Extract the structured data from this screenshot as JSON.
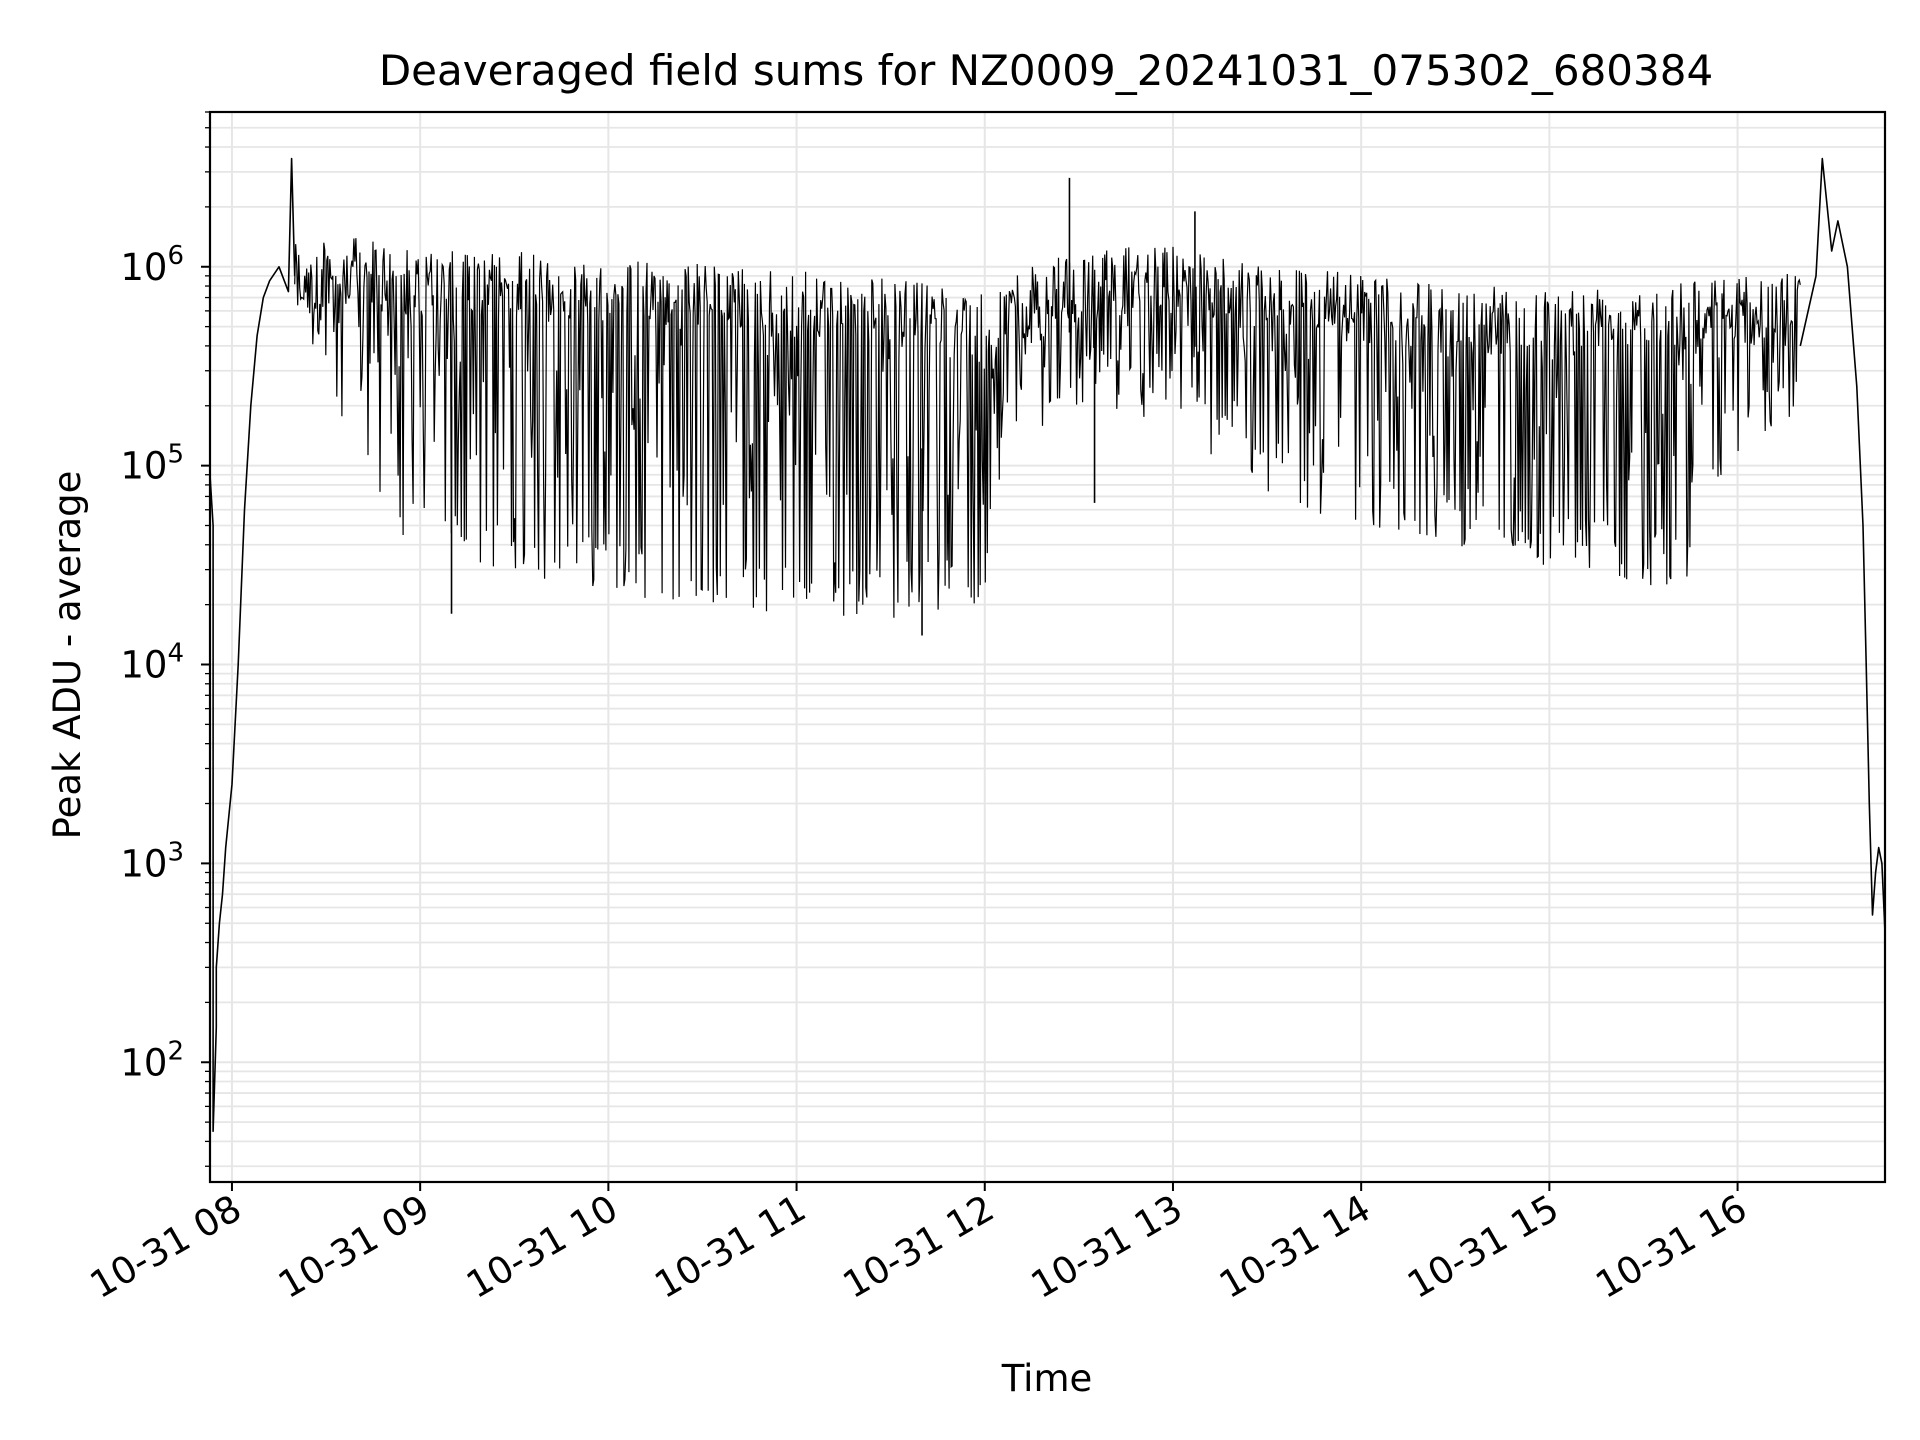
{
  "chart_data": {
    "type": "line",
    "title": "Deaveraged field sums for NZ0009_20241031_075302_680384",
    "xlabel": "Time",
    "ylabel": "Peak ADU - average",
    "yscale": "log",
    "xlim": [
      "2024-10-31 07:53",
      "2024-10-31 16:47"
    ],
    "ylim": [
      25,
      6000000
    ],
    "x_ticks": [
      "10-31 08",
      "10-31 09",
      "10-31 10",
      "10-31 11",
      "10-31 12",
      "10-31 13",
      "10-31 14",
      "10-31 15",
      "10-31 16"
    ],
    "x_tick_rotation_deg": 30,
    "y_ticks": [
      {
        "value": 100,
        "base": "10",
        "exp": "2"
      },
      {
        "value": 1000,
        "base": "10",
        "exp": "3"
      },
      {
        "value": 10000,
        "base": "10",
        "exp": "4"
      },
      {
        "value": 100000,
        "base": "10",
        "exp": "5"
      },
      {
        "value": 1000000,
        "base": "10",
        "exp": "6"
      }
    ],
    "grid": true,
    "line_color": "#000000",
    "grid_color": "#e6e6e6",
    "series": [
      {
        "x": [
          "2024-10-31 07:53",
          "2024-10-31 07:54",
          "2024-10-31 07:54",
          "2024-10-31 07:55",
          "2024-10-31 07:55",
          "2024-10-31 07:56",
          "2024-10-31 07:57",
          "2024-10-31 07:58",
          "2024-10-31 08:00",
          "2024-10-31 08:02",
          "2024-10-31 08:04",
          "2024-10-31 08:06",
          "2024-10-31 08:08",
          "2024-10-31 08:10",
          "2024-10-31 08:12",
          "2024-10-31 08:15",
          "2024-10-31 08:18",
          "2024-10-31 08:19",
          "2024-10-31 08:20"
        ],
        "y": [
          90000,
          50000,
          45,
          150,
          300,
          500,
          700,
          1200,
          2500,
          10000,
          60000,
          200000,
          450000,
          700000,
          850000,
          1000000,
          750000,
          3500000,
          900000
        ]
      },
      {
        "x": [
          "2024-10-31 16:20",
          "2024-10-31 16:25",
          "2024-10-31 16:27",
          "2024-10-31 16:30",
          "2024-10-31 16:32",
          "2024-10-31 16:35",
          "2024-10-31 16:37",
          "2024-10-31 16:38",
          "2024-10-31 16:40",
          "2024-10-31 16:41",
          "2024-10-31 16:42",
          "2024-10-31 16:43",
          "2024-10-31 16:44",
          "2024-10-31 16:45",
          "2024-10-31 16:46",
          "2024-10-31 16:47"
        ],
        "y": [
          400000,
          900000,
          3500000,
          1200000,
          1700000,
          1000000,
          400000,
          250000,
          50000,
          10000,
          2000,
          550,
          900,
          1200,
          1000,
          450
        ]
      }
    ],
    "noisy_band_x": [
      "2024-10-31 08:20",
      "2024-10-31 08:40",
      "2024-10-31 09:00",
      "2024-10-31 09:30",
      "2024-10-31 10:00",
      "2024-10-31 10:30",
      "2024-10-31 11:00",
      "2024-10-31 11:30",
      "2024-10-31 12:04",
      "2024-10-31 12:05",
      "2024-10-31 12:30",
      "2024-10-31 13:00",
      "2024-10-31 13:30",
      "2024-10-31 14:00",
      "2024-10-31 14:30",
      "2024-10-31 15:00",
      "2024-10-31 15:30",
      "2024-10-31 15:48",
      "2024-10-31 15:49",
      "2024-10-31 16:10",
      "2024-10-31 16:20"
    ],
    "noisy_band_high": [
      1300000,
      1400000,
      1200000,
      1200000,
      1100000,
      1050000,
      950000,
      900000,
      700000,
      900000,
      1200000,
      1300000,
      1100000,
      900000,
      800000,
      800000,
      900000,
      900000,
      900000,
      900000,
      1000000
    ],
    "noisy_band_low": [
      500000,
      80000,
      35000,
      28000,
      24000,
      18000,
      17000,
      17000,
      20000,
      120000,
      200000,
      150000,
      70000,
      45000,
      40000,
      30000,
      25000,
      25000,
      80000,
      120000,
      150000
    ],
    "spikes": [
      {
        "x": "2024-10-31 12:27",
        "y": 2800000
      },
      {
        "x": "2024-10-31 12:35",
        "y": 65000
      },
      {
        "x": "2024-10-31 13:07",
        "y": 1900000
      },
      {
        "x": "2024-10-31 11:40",
        "y": 14000
      },
      {
        "x": "2024-10-31 09:10",
        "y": 18000
      }
    ]
  }
}
